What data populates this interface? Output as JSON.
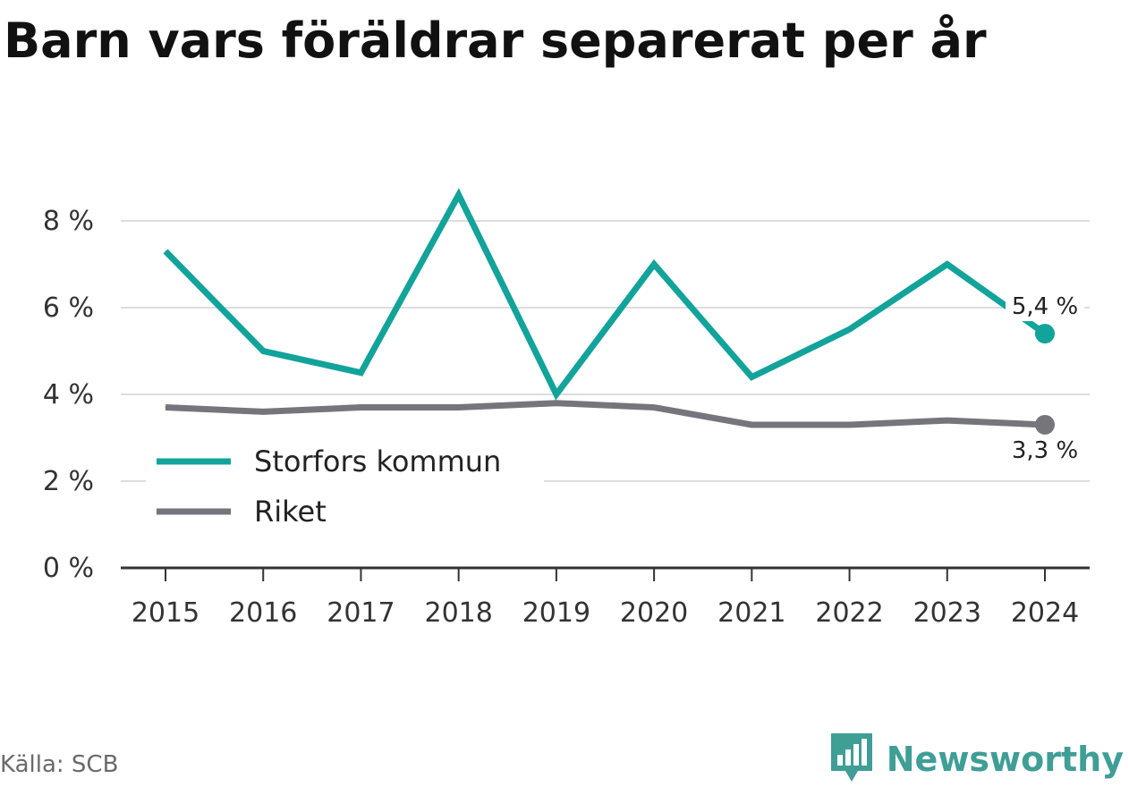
{
  "title": "Barn vars föräldrar separerat per år",
  "source": "Källa: SCB",
  "brand": {
    "name": "Newsworthy",
    "logo_icon": "bar-chart-speech-bubble-icon",
    "color": "#3f9e96"
  },
  "chart_data": {
    "type": "line",
    "title": "Barn vars föräldrar separerat per år",
    "xlabel": "",
    "ylabel": "",
    "x": [
      "2015",
      "2016",
      "2017",
      "2018",
      "2019",
      "2020",
      "2021",
      "2022",
      "2023",
      "2024"
    ],
    "ylim": [
      0,
      9
    ],
    "yticks": [
      0,
      2,
      4,
      6,
      8
    ],
    "ytick_labels": [
      "0 %",
      "2 %",
      "4 %",
      "6 %",
      "8 %"
    ],
    "grid": true,
    "legend_position": "bottom-left",
    "series": [
      {
        "name": "Storfors kommun",
        "color": "#12a39a",
        "values": [
          7.3,
          5.0,
          4.5,
          8.6,
          4.0,
          7.0,
          4.4,
          5.5,
          7.0,
          5.4
        ],
        "end_label": "5,4 %"
      },
      {
        "name": "Riket",
        "color": "#76757c",
        "values": [
          3.7,
          3.6,
          3.7,
          3.7,
          3.8,
          3.7,
          3.3,
          3.3,
          3.4,
          3.3
        ],
        "end_label": "3,3 %"
      }
    ]
  }
}
